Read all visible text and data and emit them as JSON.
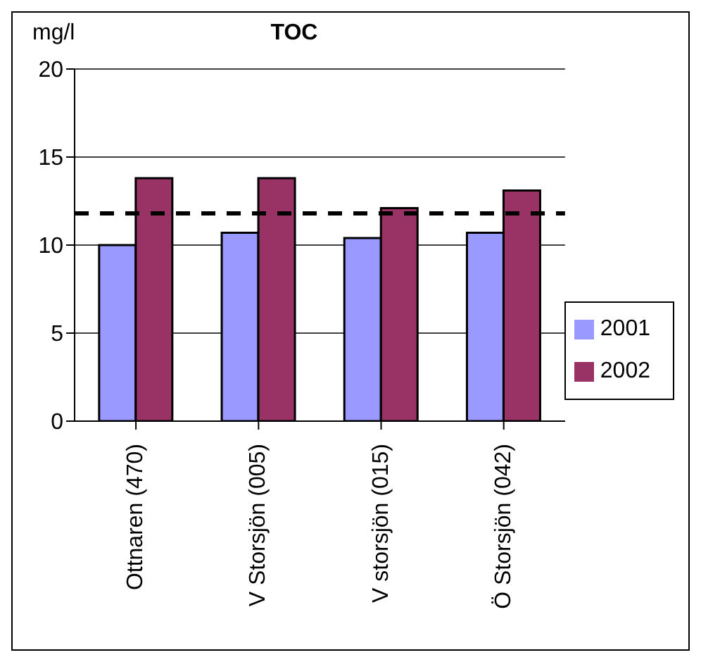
{
  "chart_data": {
    "type": "bar",
    "title": "TOC",
    "ylabel": "mg/l",
    "categories": [
      "Ottnaren (470)",
      "V Storsjön (005)",
      "V storsjön (015)",
      "Ö Storsjön (042)"
    ],
    "series": [
      {
        "name": "2001",
        "color": "#9999ff",
        "values": [
          10.0,
          10.7,
          10.4,
          10.7
        ]
      },
      {
        "name": "2002",
        "color": "#993366",
        "values": [
          13.8,
          13.8,
          12.1,
          13.1
        ]
      }
    ],
    "ylim": [
      0,
      20
    ],
    "yticks": [
      0,
      5,
      10,
      15,
      20
    ],
    "grid": "y",
    "legend": "right",
    "ref_lines": [
      {
        "axis": "y",
        "value": 11.8,
        "color": "#000000",
        "line_style": "dashed"
      }
    ]
  }
}
